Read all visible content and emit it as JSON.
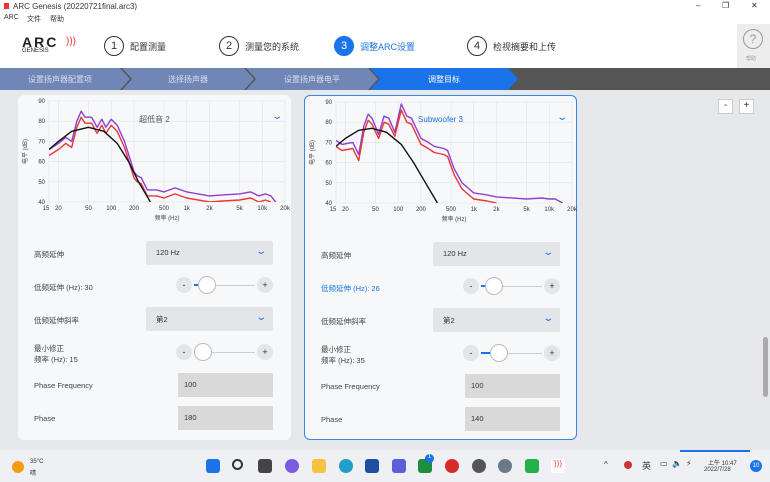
{
  "window": {
    "title": "ARC Genesis (20220721final.arc3)",
    "minimize": "–",
    "restore": "❐",
    "close": "✕"
  },
  "menu": [
    "ARC",
    "文件",
    "帮助"
  ],
  "logo": {
    "text": "ARC",
    "sub": "GENESIS"
  },
  "steps": [
    {
      "num": "1",
      "label": "配置测量"
    },
    {
      "num": "2",
      "label": "测量您的系统"
    },
    {
      "num": "3",
      "label": "调整ARC设置",
      "active": true
    },
    {
      "num": "4",
      "label": "检视摘要和上传"
    }
  ],
  "help": {
    "icon": "?",
    "label": "帮助"
  },
  "breadcrumbs": [
    "设置扬声器配置项",
    "选择扬声器",
    "设置扬声器电平",
    "调整目标"
  ],
  "zoom": {
    "minus": "-",
    "plus": "+"
  },
  "accent": "#1a73e8",
  "cards": [
    {
      "title": "超低音 2",
      "title_color": "#555",
      "chart_data": {
        "type": "line",
        "xscale": "log",
        "xlim": [
          15,
          20000
        ],
        "ylim": [
          40,
          90
        ],
        "xlabel": "频率 (Hz)",
        "ylabel": "电平 (dB)",
        "xticks": [
          "15",
          "20",
          "50",
          "100",
          "200",
          "500",
          "1k",
          "2k",
          "5k",
          "10k",
          "20k"
        ],
        "yticks": [
          "40",
          "50",
          "60",
          "70",
          "80",
          "90"
        ],
        "series": [
          {
            "color": "#8e3fd0",
            "points": [
              [
                15,
                66
              ],
              [
                20,
                69
              ],
              [
                25,
                72
              ],
              [
                30,
                70
              ],
              [
                35,
                80
              ],
              [
                40,
                85
              ],
              [
                45,
                82
              ],
              [
                55,
                82
              ],
              [
                65,
                77
              ],
              [
                75,
                81
              ],
              [
                85,
                77
              ],
              [
                100,
                81
              ],
              [
                120,
                78
              ],
              [
                150,
                70
              ],
              [
                200,
                55
              ],
              [
                220,
                53
              ],
              [
                250,
                52
              ],
              [
                300,
                46
              ],
              [
                400,
                46
              ],
              [
                500,
                45
              ],
              [
                700,
                47
              ],
              [
                1000,
                45
              ],
              [
                2000,
                43
              ],
              [
                3000,
                43.5
              ],
              [
                5000,
                44
              ],
              [
                7000,
                45
              ],
              [
                9000,
                43
              ],
              [
                11000,
                44
              ],
              [
                13000,
                43
              ],
              [
                15000,
                40
              ]
            ]
          },
          {
            "color": "#e8373a",
            "points": [
              [
                15,
                63
              ],
              [
                20,
                66
              ],
              [
                25,
                69
              ],
              [
                30,
                67
              ],
              [
                35,
                77
              ],
              [
                40,
                82
              ],
              [
                45,
                79
              ],
              [
                55,
                79
              ],
              [
                65,
                74
              ],
              [
                75,
                78
              ],
              [
                85,
                74
              ],
              [
                100,
                78
              ],
              [
                120,
                75
              ],
              [
                150,
                67
              ],
              [
                200,
                52
              ],
              [
                220,
                50
              ],
              [
                250,
                49
              ],
              [
                300,
                43
              ],
              [
                400,
                43
              ],
              [
                500,
                42
              ],
              [
                700,
                44
              ],
              [
                1000,
                42
              ],
              [
                2000,
                40
              ],
              [
                3000,
                40.5
              ],
              [
                5000,
                41
              ],
              [
                7000,
                42
              ],
              [
                9000,
                40
              ],
              [
                11000,
                41
              ],
              [
                13000,
                40
              ]
            ]
          },
          {
            "color": "#111",
            "points": [
              [
                15,
                66
              ],
              [
                20,
                70
              ],
              [
                30,
                75
              ],
              [
                50,
                77
              ],
              [
                80,
                75
              ],
              [
                120,
                69
              ],
              [
                170,
                60
              ],
              [
                230,
                50
              ],
              [
                330,
                40
              ]
            ]
          }
        ]
      },
      "controls": {
        "high_ext_label": "高频延伸",
        "high_ext_value": "120 Hz",
        "low_ext_label": "低频延伸 (Hz): 30",
        "low_ext_fraction": 0.1,
        "slope_label": "低频延伸斜率",
        "slope_value": "第2",
        "min_corr_label_1": "最小修正",
        "min_corr_label_2": "频率 (Hz): 15",
        "min_corr_fraction": 0.0,
        "phase_freq_label": "Phase Frequency",
        "phase_freq_value": "100",
        "phase_label": "Phase",
        "phase_value": "180",
        "minus": "-",
        "plus": "+"
      }
    },
    {
      "title": "Subwoofer 3",
      "title_color": "#1a73e8",
      "chart_data": {
        "type": "line",
        "xscale": "log",
        "xlim": [
          15,
          20000
        ],
        "ylim": [
          40,
          90
        ],
        "xlabel": "频率 (Hz)",
        "ylabel": "电平 (dB)",
        "xticks": [
          "15",
          "20",
          "50",
          "100",
          "200",
          "500",
          "1k",
          "2k",
          "5k",
          "10k",
          "20k"
        ],
        "yticks": [
          "40",
          "50",
          "60",
          "70",
          "80",
          "90"
        ],
        "series": [
          {
            "color": "#8e3fd0",
            "points": [
              [
                15,
                71
              ],
              [
                18,
                69
              ],
              [
                25,
                70
              ],
              [
                30,
                64
              ],
              [
                35,
                78
              ],
              [
                40,
                84
              ],
              [
                45,
                82
              ],
              [
                55,
                74
              ],
              [
                65,
                83
              ],
              [
                75,
                82
              ],
              [
                90,
                75
              ],
              [
                110,
                89
              ],
              [
                130,
                83
              ],
              [
                150,
                82
              ],
              [
                200,
                72
              ],
              [
                250,
                70
              ],
              [
                300,
                68
              ],
              [
                400,
                67
              ],
              [
                450,
                66
              ],
              [
                550,
                57
              ],
              [
                700,
                50
              ],
              [
                1000,
                45
              ],
              [
                1500,
                44
              ],
              [
                2000,
                43
              ],
              [
                5000,
                42
              ],
              [
                8000,
                42.5
              ],
              [
                10000,
                42
              ],
              [
                12000,
                42
              ],
              [
                15000,
                40
              ]
            ]
          },
          {
            "color": "#e8373a",
            "points": [
              [
                15,
                68
              ],
              [
                18,
                66
              ],
              [
                25,
                67
              ],
              [
                30,
                61
              ],
              [
                35,
                75
              ],
              [
                40,
                81
              ],
              [
                45,
                79
              ],
              [
                55,
                72
              ],
              [
                65,
                80
              ],
              [
                75,
                79
              ],
              [
                90,
                73
              ],
              [
                110,
                86
              ],
              [
                130,
                80
              ],
              [
                150,
                79
              ],
              [
                200,
                69
              ],
              [
                250,
                67
              ],
              [
                300,
                65
              ],
              [
                400,
                64
              ],
              [
                450,
                63
              ],
              [
                550,
                54
              ],
              [
                700,
                47
              ],
              [
                1000,
                42
              ],
              [
                1500,
                41
              ],
              [
                2000,
                40
              ]
            ]
          },
          {
            "color": "#111",
            "points": [
              [
                15,
                68
              ],
              [
                20,
                72
              ],
              [
                30,
                76
              ],
              [
                45,
                77
              ],
              [
                70,
                75
              ],
              [
                110,
                69
              ],
              [
                160,
                60
              ],
              [
                230,
                50
              ],
              [
                330,
                40
              ]
            ]
          }
        ]
      },
      "controls": {
        "high_ext_label": "高频延伸",
        "high_ext_value": "120 Hz",
        "low_ext_label": "低频延伸 (Hz): 26",
        "low_ext_fraction": 0.1,
        "low_ext_active": true,
        "slope_label": "低频延伸斜率",
        "slope_value": "第2",
        "min_corr_label_1": "最小修正",
        "min_corr_label_2": "频率 (Hz): 35",
        "min_corr_fraction": 0.2,
        "phase_freq_label": "Phase Frequency",
        "phase_freq_value": "100",
        "phase_label": "Phase",
        "phase_value": "140",
        "minus": "-",
        "plus": "+"
      }
    }
  ],
  "taskbar": {
    "weather_temp": "35°C",
    "weather_desc": "晴",
    "ime": "英",
    "time": "上午 10:47",
    "date": "2022/7/28",
    "notif_count": "10",
    "store_badge": "1",
    "tray_chevron": "^"
  }
}
